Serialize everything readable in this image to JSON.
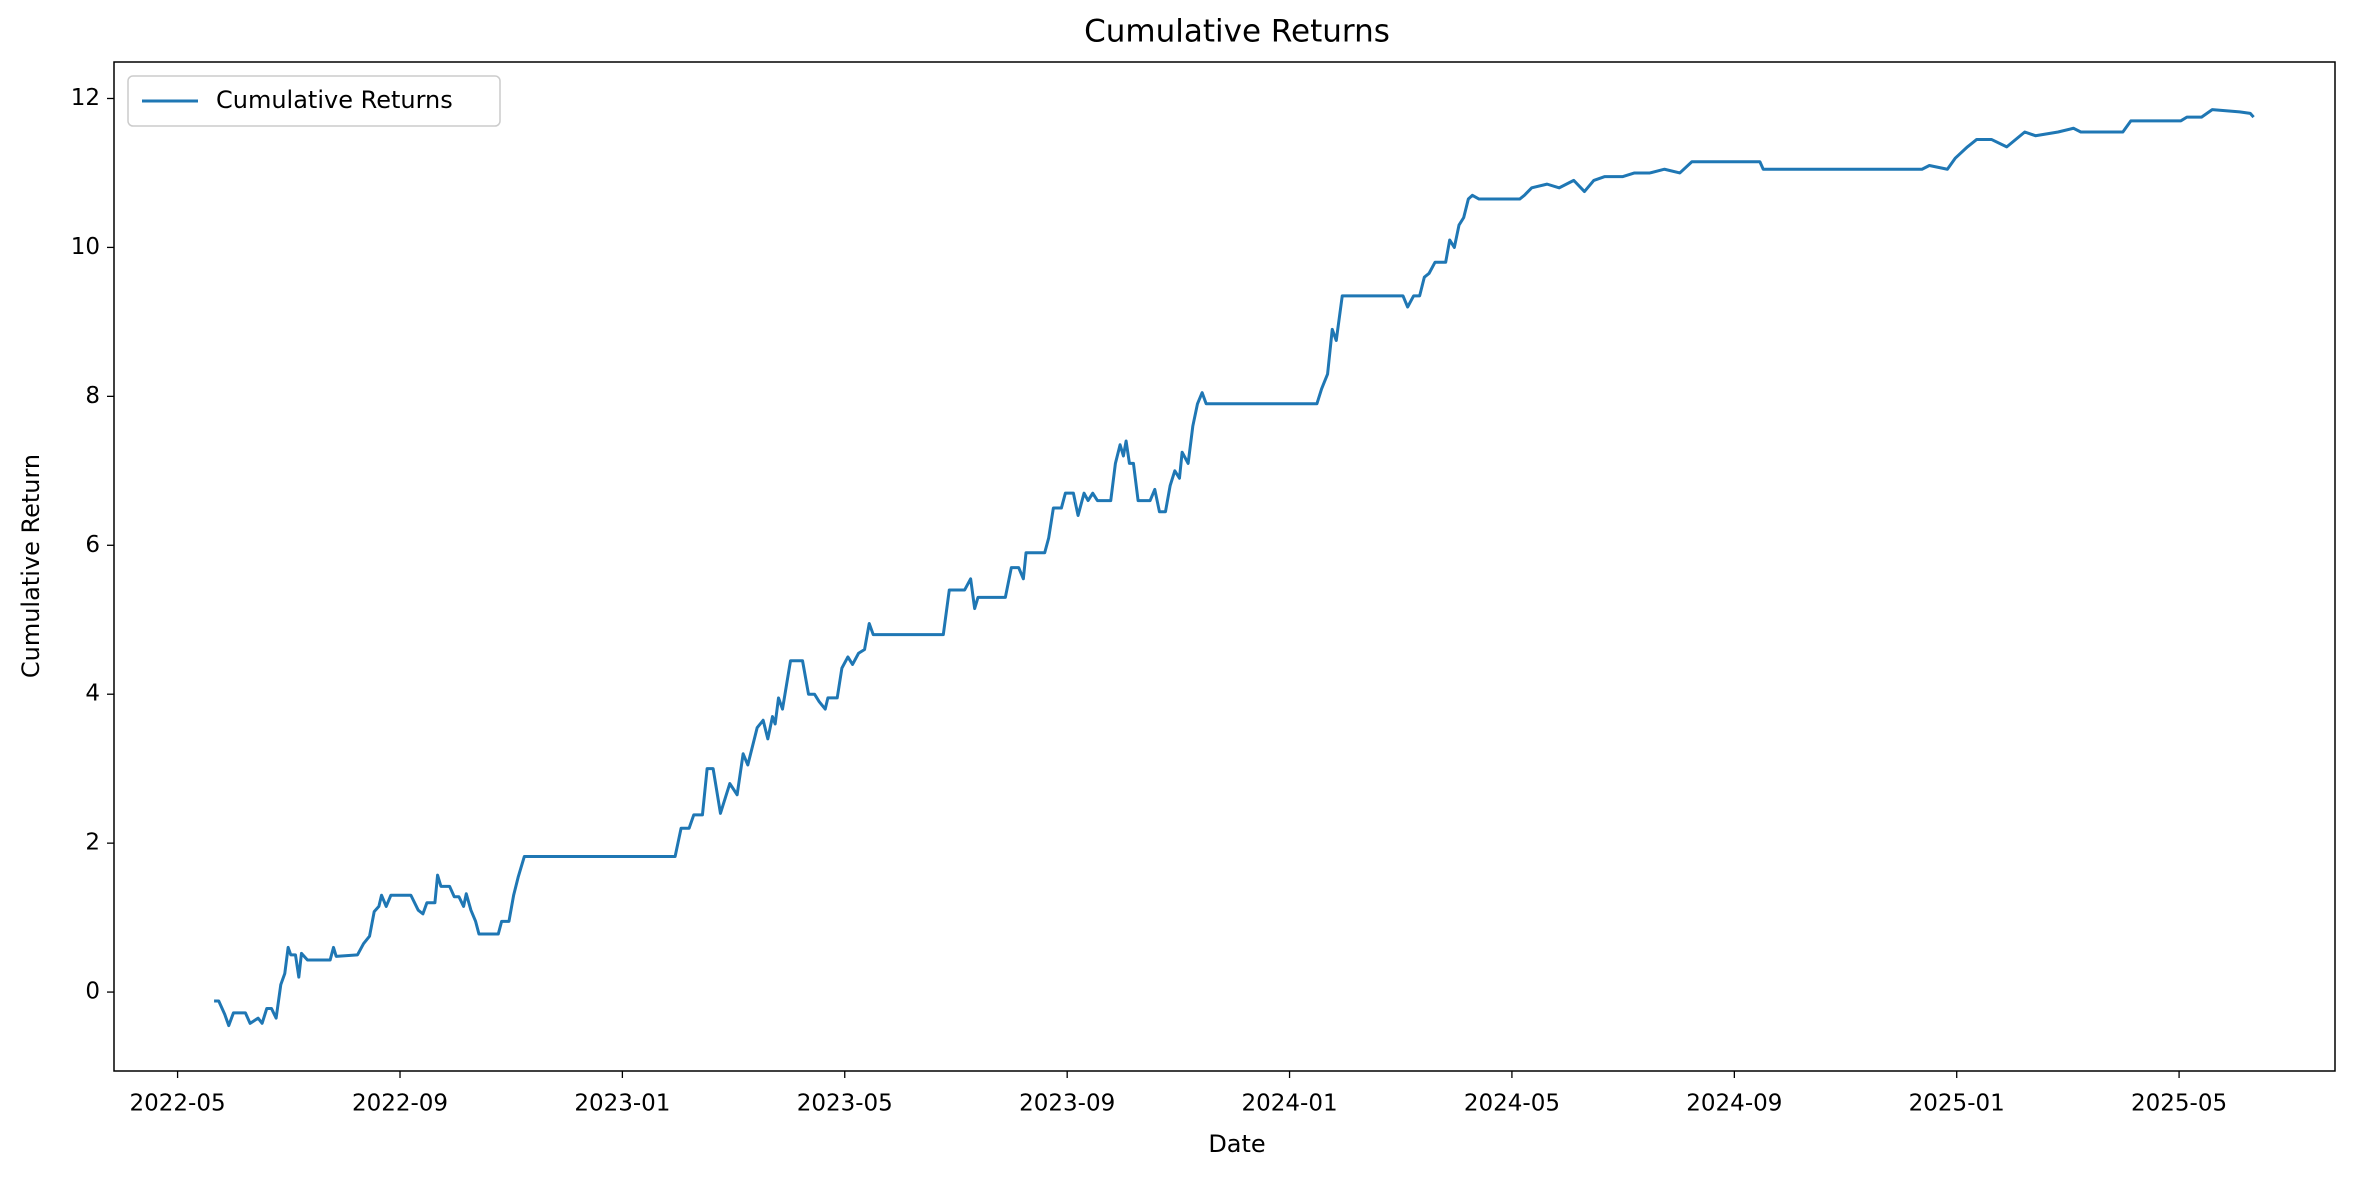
{
  "chart_data": {
    "type": "line",
    "title": "Cumulative Returns",
    "x_label": "Date",
    "y_label": "Cumulative Return",
    "legend": "upper left",
    "grid": false,
    "xlim": [
      2022.238,
      2025.567
    ],
    "xticks": [
      {
        "value": 2022.3333,
        "label": "2022-05"
      },
      {
        "value": 2022.6667,
        "label": "2022-09"
      },
      {
        "value": 2023.0,
        "label": "2023-01"
      },
      {
        "value": 2023.3333,
        "label": "2023-05"
      },
      {
        "value": 2023.6667,
        "label": "2023-09"
      },
      {
        "value": 2024.0,
        "label": "2024-01"
      },
      {
        "value": 2024.3333,
        "label": "2024-05"
      },
      {
        "value": 2024.6667,
        "label": "2024-09"
      },
      {
        "value": 2025.0,
        "label": "2025-01"
      },
      {
        "value": 2025.3333,
        "label": "2025-05"
      }
    ],
    "ylim": [
      -1.06,
      12.49
    ],
    "yticks": [
      0,
      2,
      4,
      6,
      8,
      10,
      12
    ],
    "x": [
      2022.388,
      2022.395,
      2022.404,
      2022.41,
      2022.417,
      2022.435,
      2022.442,
      2022.454,
      2022.46,
      2022.467,
      2022.474,
      2022.481,
      2022.488,
      2022.494,
      2022.499,
      2022.503,
      2022.51,
      2022.515,
      2022.519,
      2022.528,
      2022.562,
      2022.567,
      2022.571,
      2022.603,
      2022.612,
      2022.621,
      2022.628,
      2022.635,
      2022.639,
      2022.646,
      2022.653,
      2022.683,
      2022.694,
      2022.701,
      2022.707,
      2022.719,
      2022.723,
      2022.728,
      2022.741,
      2022.748,
      2022.755,
      2022.762,
      2022.766,
      2022.773,
      2022.78,
      2022.785,
      2022.814,
      2022.819,
      2022.83,
      2022.837,
      2022.844,
      2022.853,
      2023.079,
      2023.088,
      2023.1,
      2023.107,
      2023.12,
      2023.127,
      2023.136,
      2023.147,
      2023.154,
      2023.161,
      2023.172,
      2023.181,
      2023.188,
      2023.195,
      2023.202,
      2023.211,
      2023.218,
      2023.225,
      2023.229,
      2023.234,
      2023.24,
      2023.252,
      2023.27,
      2023.279,
      2023.288,
      2023.295,
      2023.304,
      2023.308,
      2023.322,
      2023.329,
      2023.338,
      2023.345,
      2023.354,
      2023.363,
      2023.37,
      2023.376,
      2023.481,
      2023.49,
      2023.513,
      2023.522,
      2023.528,
      2023.533,
      2023.574,
      2023.583,
      2023.594,
      2023.601,
      2023.605,
      2023.633,
      2023.639,
      2023.646,
      2023.658,
      2023.664,
      2023.676,
      2023.683,
      2023.692,
      2023.698,
      2023.705,
      2023.712,
      2023.732,
      2023.739,
      2023.746,
      2023.751,
      2023.755,
      2023.76,
      2023.766,
      2023.773,
      2023.791,
      2023.798,
      2023.805,
      2023.814,
      2023.821,
      2023.828,
      2023.835,
      2023.839,
      2023.848,
      2023.855,
      2023.862,
      2023.869,
      2023.875,
      2024.041,
      2024.048,
      2024.057,
      2024.064,
      2024.07,
      2024.079,
      2024.17,
      2024.177,
      2024.186,
      2024.195,
      2024.202,
      2024.209,
      2024.218,
      2024.234,
      2024.24,
      2024.247,
      2024.254,
      2024.261,
      2024.268,
      2024.274,
      2024.284,
      2024.345,
      2024.352,
      2024.363,
      2024.386,
      2024.404,
      2024.426,
      2024.442,
      2024.456,
      2024.472,
      2024.499,
      2024.517,
      2024.54,
      2024.562,
      2024.585,
      2024.603,
      2024.705,
      2024.71,
      2024.948,
      2024.959,
      2024.986,
      2024.998,
      2025.016,
      2025.03,
      2025.052,
      2025.075,
      2025.102,
      2025.118,
      2025.152,
      2025.175,
      2025.186,
      2025.249,
      2025.261,
      2025.336,
      2025.345,
      2025.367,
      2025.383,
      2025.424,
      2025.44,
      2025.445
    ],
    "series": [
      {
        "name": "Cumulative Returns",
        "color": "#1f77b4",
        "values": [
          -0.12,
          -0.12,
          -0.3,
          -0.45,
          -0.28,
          -0.28,
          -0.42,
          -0.35,
          -0.42,
          -0.22,
          -0.22,
          -0.35,
          0.1,
          0.25,
          0.6,
          0.5,
          0.5,
          0.2,
          0.52,
          0.43,
          0.43,
          0.6,
          0.48,
          0.5,
          0.65,
          0.75,
          1.08,
          1.15,
          1.3,
          1.15,
          1.3,
          1.3,
          1.1,
          1.05,
          1.2,
          1.2,
          1.57,
          1.42,
          1.42,
          1.28,
          1.28,
          1.15,
          1.32,
          1.1,
          0.95,
          0.78,
          0.78,
          0.95,
          0.95,
          1.3,
          1.55,
          1.82,
          1.82,
          2.2,
          2.2,
          2.38,
          2.38,
          3.0,
          3.0,
          2.4,
          2.6,
          2.8,
          2.65,
          3.2,
          3.05,
          3.3,
          3.55,
          3.65,
          3.4,
          3.7,
          3.6,
          3.95,
          3.8,
          4.45,
          4.45,
          4.0,
          4.0,
          3.9,
          3.8,
          3.95,
          3.95,
          4.35,
          4.5,
          4.4,
          4.55,
          4.6,
          4.95,
          4.8,
          4.8,
          5.4,
          5.4,
          5.55,
          5.15,
          5.3,
          5.3,
          5.7,
          5.7,
          5.55,
          5.9,
          5.9,
          6.1,
          6.5,
          6.5,
          6.7,
          6.7,
          6.4,
          6.7,
          6.6,
          6.7,
          6.6,
          6.6,
          7.1,
          7.35,
          7.2,
          7.4,
          7.1,
          7.1,
          6.6,
          6.6,
          6.75,
          6.45,
          6.45,
          6.8,
          7.0,
          6.9,
          7.25,
          7.1,
          7.6,
          7.9,
          8.05,
          7.9,
          7.9,
          8.1,
          8.3,
          8.9,
          8.75,
          9.35,
          9.35,
          9.2,
          9.35,
          9.35,
          9.6,
          9.65,
          9.8,
          9.8,
          10.1,
          10.0,
          10.3,
          10.4,
          10.65,
          10.7,
          10.65,
          10.65,
          10.7,
          10.8,
          10.85,
          10.8,
          10.9,
          10.75,
          10.9,
          10.95,
          10.95,
          11.0,
          11.0,
          11.05,
          11.0,
          11.15,
          11.15,
          11.05,
          11.05,
          11.1,
          11.05,
          11.2,
          11.35,
          11.45,
          11.45,
          11.35,
          11.55,
          11.5,
          11.55,
          11.6,
          11.55,
          11.55,
          11.7,
          11.7,
          11.75,
          11.75,
          11.85,
          11.82,
          11.8,
          11.75
        ]
      }
    ]
  }
}
